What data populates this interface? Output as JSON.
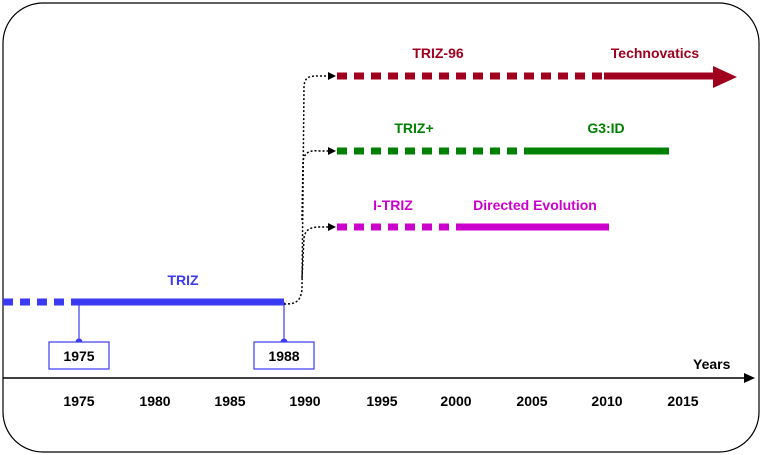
{
  "axis": {
    "label": "Years",
    "ticks": [
      "1975",
      "1980",
      "1985",
      "1990",
      "1995",
      "2000",
      "2005",
      "2010",
      "2015"
    ]
  },
  "markers": [
    {
      "label": "1975"
    },
    {
      "label": "1988"
    }
  ],
  "lines": [
    {
      "id": "triz",
      "color": "#3a3af0",
      "labels": [
        "TRIZ"
      ]
    },
    {
      "id": "itriz",
      "color": "#cc00cc",
      "labels": [
        "I-TRIZ",
        "Directed Evolution"
      ]
    },
    {
      "id": "trizplus",
      "color": "#008000",
      "labels": [
        "TRIZ+",
        "G3:ID"
      ]
    },
    {
      "id": "triz96",
      "color": "#a0001e",
      "labels": [
        "TRIZ-96",
        "Technovatics"
      ]
    }
  ]
}
